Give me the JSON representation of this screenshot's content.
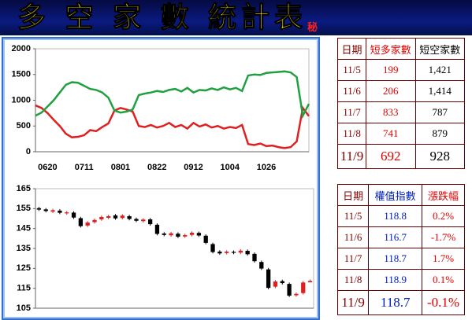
{
  "header": {
    "title": "多 空 家 數 統計表",
    "badge": "秘"
  },
  "chart_data": [
    {
      "type": "line",
      "categories": [
        null,
        null,
        "0620",
        null,
        null,
        null,
        null,
        null,
        "0711",
        null,
        null,
        null,
        null,
        null,
        "0801",
        null,
        null,
        null,
        null,
        null,
        "0822",
        null,
        null,
        null,
        null,
        null,
        "0912",
        null,
        null,
        null,
        null,
        null,
        "1004",
        null,
        null,
        null,
        null,
        null,
        "1026",
        null,
        null,
        null,
        null,
        null,
        null,
        null
      ],
      "series": [
        {
          "color": "#e02020",
          "values": [
            900,
            850,
            750,
            620,
            500,
            350,
            280,
            290,
            320,
            420,
            400,
            480,
            550,
            800,
            850,
            820,
            780,
            500,
            480,
            520,
            470,
            500,
            560,
            480,
            520,
            450,
            560,
            490,
            530,
            470,
            500,
            450,
            480,
            460,
            520,
            150,
            130,
            160,
            110,
            120,
            90,
            70,
            90,
            200,
            850,
            692
          ]
        },
        {
          "color": "#20a040",
          "values": [
            700,
            760,
            880,
            1000,
            1150,
            1300,
            1350,
            1340,
            1280,
            1220,
            1200,
            1150,
            1050,
            800,
            760,
            780,
            820,
            1100,
            1130,
            1150,
            1180,
            1160,
            1200,
            1220,
            1170,
            1240,
            1150,
            1200,
            1190,
            1230,
            1200,
            1250,
            1210,
            1240,
            1180,
            1480,
            1500,
            1490,
            1530,
            1540,
            1550,
            1560,
            1540,
            1450,
            700,
            928
          ]
        }
      ],
      "ylim": [
        0,
        2000
      ],
      "yticks": [
        0,
        500,
        1000,
        1500,
        2000
      ]
    },
    {
      "type": "candlestick",
      "up_color": "#e02020",
      "down_color": "#000000",
      "open": [
        155.2,
        154.6,
        153.5,
        154.0,
        152.6,
        153.0,
        150.2,
        146.5,
        148.2,
        149.6,
        150.4,
        151.6,
        150.3,
        151.2,
        149.8,
        148.7,
        149.6,
        146.9,
        142.5,
        141.6,
        142.4,
        141.0,
        141.8,
        142.8,
        141.4,
        137.2,
        133.4,
        132.7,
        133.3,
        132.9,
        133.8,
        132.3,
        128.2,
        124.5,
        115.8,
        118.6,
        117.2,
        111.5,
        112.6,
        118.0
      ],
      "high": [
        155.9,
        155.3,
        154.9,
        154.7,
        153.8,
        153.7,
        150.9,
        148.7,
        150.0,
        151.5,
        151.9,
        152.3,
        152.2,
        151.9,
        150.5,
        150.2,
        150.3,
        147.6,
        143.2,
        143.3,
        143.1,
        142.4,
        143.6,
        143.5,
        142.1,
        137.9,
        134.1,
        134.1,
        134.0,
        134.6,
        134.5,
        133.0,
        128.9,
        125.2,
        119.1,
        119.3,
        117.9,
        112.9,
        118.6,
        119.4
      ],
      "low": [
        153.8,
        153.1,
        152.8,
        152.2,
        151.9,
        149.8,
        145.5,
        145.8,
        147.5,
        148.9,
        149.7,
        149.4,
        149.6,
        149.1,
        148.2,
        148.0,
        146.5,
        141.6,
        141.1,
        140.9,
        140.2,
        140.3,
        141.1,
        140.8,
        137.1,
        132.5,
        131.8,
        132.0,
        132.1,
        132.2,
        131.4,
        127.9,
        124.2,
        114.5,
        115.1,
        116.9,
        110.6,
        110.8,
        111.9,
        118.0
      ],
      "close": [
        154.5,
        153.8,
        154.2,
        152.9,
        153.1,
        150.5,
        146.2,
        148.0,
        149.3,
        150.8,
        151.2,
        150.1,
        151.5,
        149.8,
        148.9,
        149.5,
        147.2,
        142.3,
        141.8,
        142.6,
        140.9,
        141.7,
        142.9,
        141.5,
        137.8,
        133.2,
        132.5,
        133.4,
        132.8,
        133.9,
        132.1,
        128.6,
        124.9,
        115.2,
        118.4,
        117.6,
        111.3,
        112.2,
        117.9,
        118.7
      ],
      "ylim": [
        105,
        165
      ],
      "yticks": [
        105,
        115,
        125,
        135,
        145,
        155,
        165
      ]
    }
  ],
  "tables": [
    {
      "columns": [
        "日期",
        "短多家數",
        "短空家數"
      ],
      "rows": [
        [
          "11/5",
          "199",
          "1,421"
        ],
        [
          "11/6",
          "206",
          "1,414"
        ],
        [
          "11/7",
          "833",
          "787"
        ],
        [
          "11/8",
          "741",
          "879"
        ],
        [
          "11/9",
          "692",
          "928"
        ]
      ]
    },
    {
      "columns": [
        "日期",
        "權值指數",
        "漲跌幅"
      ],
      "rows": [
        [
          "11/5",
          "118.8",
          "0.2%"
        ],
        [
          "11/6",
          "116.7",
          "-1.7%"
        ],
        [
          "11/7",
          "118.7",
          "1.7%"
        ],
        [
          "11/8",
          "118.9",
          "0.1%"
        ],
        [
          "11/9",
          "118.7",
          "-0.1%"
        ]
      ]
    }
  ]
}
